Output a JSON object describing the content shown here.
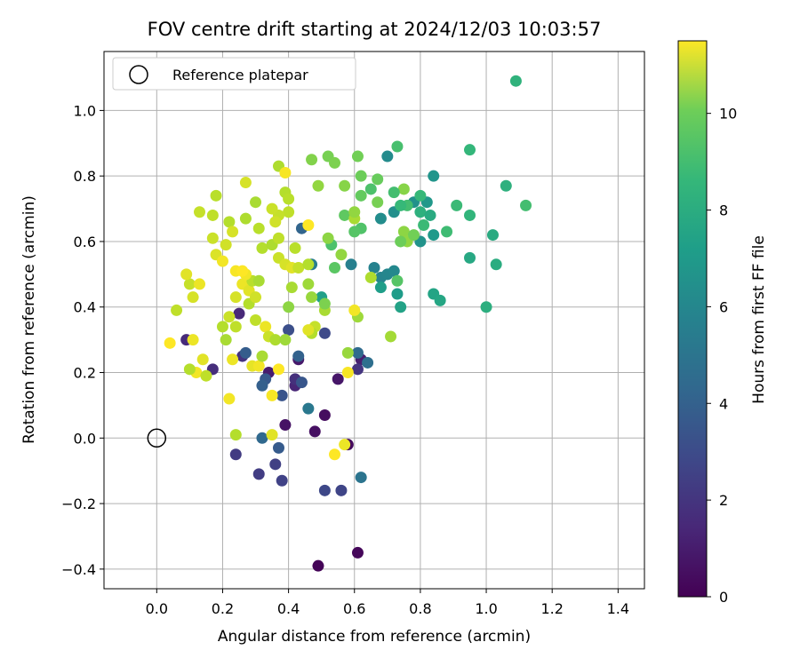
{
  "chart_data": {
    "type": "scatter",
    "title": "FOV centre drift starting at 2024/12/03 10:03:57",
    "xlabel": "Angular distance from reference (arcmin)",
    "ylabel": "Rotation from reference (arcmin)",
    "xlim": [
      -0.16,
      1.48
    ],
    "ylim": [
      -0.46,
      1.18
    ],
    "xticks": [
      "0.0",
      "0.2",
      "0.4",
      "0.6",
      "0.8",
      "1.0",
      "1.2",
      "1.4"
    ],
    "yticks": [
      "−0.4",
      "−0.2",
      "0.0",
      "0.2",
      "0.4",
      "0.6",
      "0.8",
      "1.0"
    ],
    "grid": true,
    "legend": {
      "location": "top-left",
      "entries": [
        "Reference platepar"
      ]
    },
    "reference_point": {
      "x": 0.0,
      "y": 0.0
    },
    "colorbar": {
      "label": "Hours from first FF file",
      "colormap": "viridis",
      "range": [
        0,
        11.5
      ],
      "ticks": [
        "0",
        "2",
        "4",
        "6",
        "8",
        "10"
      ]
    },
    "points": [
      {
        "x": 0.49,
        "y": -0.39,
        "c": 0.1
      },
      {
        "x": 0.61,
        "y": -0.35,
        "c": 0.2
      },
      {
        "x": 0.58,
        "y": -0.02,
        "c": 0.3
      },
      {
        "x": 0.51,
        "y": 0.07,
        "c": 0.4
      },
      {
        "x": 0.48,
        "y": 0.02,
        "c": 0.5
      },
      {
        "x": 0.39,
        "y": 0.04,
        "c": 0.6
      },
      {
        "x": 0.55,
        "y": 0.18,
        "c": 0.7
      },
      {
        "x": 0.43,
        "y": 0.24,
        "c": 0.8
      },
      {
        "x": 0.34,
        "y": 0.2,
        "c": 0.9
      },
      {
        "x": 0.62,
        "y": 0.24,
        "c": 1.0
      },
      {
        "x": 0.42,
        "y": 0.16,
        "c": 1.2
      },
      {
        "x": 0.25,
        "y": 0.38,
        "c": 1.3
      },
      {
        "x": 0.09,
        "y": 0.3,
        "c": 1.4
      },
      {
        "x": 0.17,
        "y": 0.21,
        "c": 1.5
      },
      {
        "x": 0.42,
        "y": 0.18,
        "c": 1.6
      },
      {
        "x": 0.26,
        "y": 0.25,
        "c": 1.7
      },
      {
        "x": 0.61,
        "y": 0.21,
        "c": 1.8
      },
      {
        "x": 0.24,
        "y": -0.05,
        "c": 2.0
      },
      {
        "x": 0.31,
        "y": -0.11,
        "c": 2.1
      },
      {
        "x": 0.36,
        "y": -0.08,
        "c": 2.2
      },
      {
        "x": 0.38,
        "y": -0.13,
        "c": 2.3
      },
      {
        "x": 0.56,
        "y": -0.16,
        "c": 2.4
      },
      {
        "x": 0.51,
        "y": -0.16,
        "c": 2.5
      },
      {
        "x": 0.51,
        "y": 0.32,
        "c": 2.6
      },
      {
        "x": 0.4,
        "y": 0.33,
        "c": 2.8
      },
      {
        "x": 0.38,
        "y": 0.13,
        "c": 3.0
      },
      {
        "x": 0.44,
        "y": 0.17,
        "c": 3.1
      },
      {
        "x": 0.33,
        "y": 0.18,
        "c": 3.2
      },
      {
        "x": 0.37,
        "y": -0.03,
        "c": 3.3
      },
      {
        "x": 0.27,
        "y": 0.26,
        "c": 3.4
      },
      {
        "x": 0.32,
        "y": 0.16,
        "c": 3.5
      },
      {
        "x": 0.43,
        "y": 0.25,
        "c": 3.6
      },
      {
        "x": 0.44,
        "y": 0.64,
        "c": 3.7
      },
      {
        "x": 0.32,
        "y": 0.0,
        "c": 3.9
      },
      {
        "x": 0.61,
        "y": 0.26,
        "c": 4.0
      },
      {
        "x": 0.64,
        "y": 0.23,
        "c": 4.2
      },
      {
        "x": 0.62,
        "y": -0.12,
        "c": 4.4
      },
      {
        "x": 0.46,
        "y": 0.09,
        "c": 4.6
      },
      {
        "x": 0.47,
        "y": 0.53,
        "c": 4.8
      },
      {
        "x": 0.59,
        "y": 0.53,
        "c": 5.0
      },
      {
        "x": 0.66,
        "y": 0.52,
        "c": 5.1
      },
      {
        "x": 0.68,
        "y": 0.49,
        "c": 5.2
      },
      {
        "x": 0.7,
        "y": 0.5,
        "c": 5.3
      },
      {
        "x": 0.72,
        "y": 0.51,
        "c": 5.4
      },
      {
        "x": 0.7,
        "y": 0.86,
        "c": 5.5
      },
      {
        "x": 0.68,
        "y": 0.67,
        "c": 5.6
      },
      {
        "x": 0.72,
        "y": 0.69,
        "c": 5.7
      },
      {
        "x": 0.78,
        "y": 0.72,
        "c": 5.8
      },
      {
        "x": 0.8,
        "y": 0.6,
        "c": 5.9
      },
      {
        "x": 0.84,
        "y": 0.8,
        "c": 6.0
      },
      {
        "x": 0.82,
        "y": 0.72,
        "c": 6.1
      },
      {
        "x": 0.84,
        "y": 0.62,
        "c": 6.2
      },
      {
        "x": 0.73,
        "y": 0.44,
        "c": 6.3
      },
      {
        "x": 0.68,
        "y": 0.46,
        "c": 6.4
      },
      {
        "x": 0.5,
        "y": 0.43,
        "c": 6.5
      },
      {
        "x": 0.74,
        "y": 0.4,
        "c": 6.6
      },
      {
        "x": 0.84,
        "y": 0.44,
        "c": 6.7
      },
      {
        "x": 0.86,
        "y": 0.42,
        "c": 6.8
      },
      {
        "x": 0.95,
        "y": 0.55,
        "c": 6.9
      },
      {
        "x": 1.02,
        "y": 0.62,
        "c": 7.0
      },
      {
        "x": 1.03,
        "y": 0.53,
        "c": 7.1
      },
      {
        "x": 1.0,
        "y": 0.4,
        "c": 7.2
      },
      {
        "x": 1.06,
        "y": 0.77,
        "c": 7.3
      },
      {
        "x": 1.09,
        "y": 1.09,
        "c": 7.4
      },
      {
        "x": 0.95,
        "y": 0.68,
        "c": 7.5
      },
      {
        "x": 0.95,
        "y": 0.88,
        "c": 7.6
      },
      {
        "x": 0.8,
        "y": 0.74,
        "c": 7.7
      },
      {
        "x": 0.81,
        "y": 0.65,
        "c": 7.8
      },
      {
        "x": 0.88,
        "y": 0.63,
        "c": 7.9
      },
      {
        "x": 1.12,
        "y": 0.71,
        "c": 8.0
      },
      {
        "x": 0.91,
        "y": 0.71,
        "c": 7.8
      },
      {
        "x": 0.76,
        "y": 0.71,
        "c": 8.0
      },
      {
        "x": 0.73,
        "y": 0.89,
        "c": 8.1
      },
      {
        "x": 0.53,
        "y": 0.59,
        "c": 8.2
      },
      {
        "x": 0.62,
        "y": 0.64,
        "c": 8.3
      },
      {
        "x": 0.6,
        "y": 0.63,
        "c": 8.4
      },
      {
        "x": 0.54,
        "y": 0.52,
        "c": 8.5
      },
      {
        "x": 0.57,
        "y": 0.68,
        "c": 8.6
      },
      {
        "x": 0.62,
        "y": 0.74,
        "c": 8.7
      },
      {
        "x": 0.67,
        "y": 0.79,
        "c": 8.8
      },
      {
        "x": 0.62,
        "y": 0.8,
        "c": 8.9
      },
      {
        "x": 0.61,
        "y": 0.86,
        "c": 9.0
      },
      {
        "x": 0.52,
        "y": 0.86,
        "c": 9.1
      },
      {
        "x": 0.54,
        "y": 0.84,
        "c": 9.2
      },
      {
        "x": 0.47,
        "y": 0.85,
        "c": 9.3
      },
      {
        "x": 0.57,
        "y": 0.77,
        "c": 9.4
      },
      {
        "x": 0.52,
        "y": 0.61,
        "c": 9.5
      },
      {
        "x": 0.56,
        "y": 0.56,
        "c": 9.6
      },
      {
        "x": 0.58,
        "y": 0.26,
        "c": 9.7
      },
      {
        "x": 0.61,
        "y": 0.37,
        "c": 9.8
      },
      {
        "x": 0.71,
        "y": 0.31,
        "c": 9.9
      },
      {
        "x": 0.6,
        "y": 0.67,
        "c": 10.0
      },
      {
        "x": 0.65,
        "y": 0.49,
        "c": 10.1
      },
      {
        "x": 0.67,
        "y": 0.72,
        "c": 9.1
      },
      {
        "x": 0.75,
        "y": 0.76,
        "c": 9.4
      },
      {
        "x": 0.6,
        "y": 0.69,
        "c": 9.6
      },
      {
        "x": 0.37,
        "y": 0.83,
        "c": 10.1
      },
      {
        "x": 0.39,
        "y": 0.81,
        "c": 11.4
      },
      {
        "x": 0.39,
        "y": 0.75,
        "c": 10.2
      },
      {
        "x": 0.4,
        "y": 0.73,
        "c": 10.3
      },
      {
        "x": 0.4,
        "y": 0.69,
        "c": 10.4
      },
      {
        "x": 0.37,
        "y": 0.68,
        "c": 10.5
      },
      {
        "x": 0.35,
        "y": 0.7,
        "c": 10.6
      },
      {
        "x": 0.36,
        "y": 0.66,
        "c": 10.7
      },
      {
        "x": 0.27,
        "y": 0.78,
        "c": 10.8
      },
      {
        "x": 0.3,
        "y": 0.72,
        "c": 10.0
      },
      {
        "x": 0.27,
        "y": 0.67,
        "c": 10.1
      },
      {
        "x": 0.22,
        "y": 0.66,
        "c": 10.2
      },
      {
        "x": 0.18,
        "y": 0.74,
        "c": 10.3
      },
      {
        "x": 0.17,
        "y": 0.68,
        "c": 10.4
      },
      {
        "x": 0.13,
        "y": 0.69,
        "c": 10.5
      },
      {
        "x": 0.17,
        "y": 0.61,
        "c": 10.6
      },
      {
        "x": 0.21,
        "y": 0.59,
        "c": 10.7
      },
      {
        "x": 0.23,
        "y": 0.63,
        "c": 10.8
      },
      {
        "x": 0.18,
        "y": 0.56,
        "c": 10.9
      },
      {
        "x": 0.2,
        "y": 0.54,
        "c": 11.3
      },
      {
        "x": 0.24,
        "y": 0.51,
        "c": 11.4
      },
      {
        "x": 0.26,
        "y": 0.47,
        "c": 11.2
      },
      {
        "x": 0.28,
        "y": 0.45,
        "c": 11.0
      },
      {
        "x": 0.24,
        "y": 0.43,
        "c": 10.8
      },
      {
        "x": 0.22,
        "y": 0.37,
        "c": 10.6
      },
      {
        "x": 0.24,
        "y": 0.34,
        "c": 10.4
      },
      {
        "x": 0.2,
        "y": 0.34,
        "c": 10.2
      },
      {
        "x": 0.21,
        "y": 0.3,
        "c": 10.0
      },
      {
        "x": 0.23,
        "y": 0.24,
        "c": 11.2
      },
      {
        "x": 0.14,
        "y": 0.24,
        "c": 11.0
      },
      {
        "x": 0.12,
        "y": 0.2,
        "c": 11.3
      },
      {
        "x": 0.15,
        "y": 0.19,
        "c": 10.4
      },
      {
        "x": 0.1,
        "y": 0.21,
        "c": 10.2
      },
      {
        "x": 0.04,
        "y": 0.29,
        "c": 11.5
      },
      {
        "x": 0.11,
        "y": 0.3,
        "c": 11.2
      },
      {
        "x": 0.06,
        "y": 0.39,
        "c": 10.4
      },
      {
        "x": 0.1,
        "y": 0.47,
        "c": 10.5
      },
      {
        "x": 0.09,
        "y": 0.5,
        "c": 11.0
      },
      {
        "x": 0.11,
        "y": 0.43,
        "c": 10.8
      },
      {
        "x": 0.13,
        "y": 0.47,
        "c": 11.2
      },
      {
        "x": 0.22,
        "y": 0.12,
        "c": 11.3
      },
      {
        "x": 0.24,
        "y": 0.01,
        "c": 10.2
      },
      {
        "x": 0.35,
        "y": 0.01,
        "c": 11.0
      },
      {
        "x": 0.29,
        "y": 0.22,
        "c": 11.1
      },
      {
        "x": 0.31,
        "y": 0.22,
        "c": 11.3
      },
      {
        "x": 0.32,
        "y": 0.25,
        "c": 10.0
      },
      {
        "x": 0.35,
        "y": 0.13,
        "c": 11.4
      },
      {
        "x": 0.37,
        "y": 0.21,
        "c": 11.5
      },
      {
        "x": 0.33,
        "y": 0.34,
        "c": 11.2
      },
      {
        "x": 0.34,
        "y": 0.31,
        "c": 10.6
      },
      {
        "x": 0.36,
        "y": 0.3,
        "c": 10.1
      },
      {
        "x": 0.39,
        "y": 0.3,
        "c": 9.8
      },
      {
        "x": 0.4,
        "y": 0.4,
        "c": 9.5
      },
      {
        "x": 0.3,
        "y": 0.36,
        "c": 10.4
      },
      {
        "x": 0.28,
        "y": 0.41,
        "c": 10.2
      },
      {
        "x": 0.3,
        "y": 0.43,
        "c": 10.7
      },
      {
        "x": 0.29,
        "y": 0.48,
        "c": 10.3
      },
      {
        "x": 0.31,
        "y": 0.48,
        "c": 10.0
      },
      {
        "x": 0.27,
        "y": 0.5,
        "c": 11.3
      },
      {
        "x": 0.26,
        "y": 0.51,
        "c": 11.5
      },
      {
        "x": 0.32,
        "y": 0.58,
        "c": 10.2
      },
      {
        "x": 0.35,
        "y": 0.59,
        "c": 10.1
      },
      {
        "x": 0.37,
        "y": 0.61,
        "c": 10.4
      },
      {
        "x": 0.31,
        "y": 0.64,
        "c": 10.3
      },
      {
        "x": 0.37,
        "y": 0.55,
        "c": 10.6
      },
      {
        "x": 0.39,
        "y": 0.53,
        "c": 10.8
      },
      {
        "x": 0.41,
        "y": 0.52,
        "c": 11.0
      },
      {
        "x": 0.43,
        "y": 0.52,
        "c": 10.5
      },
      {
        "x": 0.46,
        "y": 0.53,
        "c": 10.2
      },
      {
        "x": 0.41,
        "y": 0.46,
        "c": 10.0
      },
      {
        "x": 0.46,
        "y": 0.47,
        "c": 9.8
      },
      {
        "x": 0.47,
        "y": 0.43,
        "c": 9.7
      },
      {
        "x": 0.42,
        "y": 0.58,
        "c": 10.3
      },
      {
        "x": 0.48,
        "y": 0.34,
        "c": 10.5
      },
      {
        "x": 0.47,
        "y": 0.32,
        "c": 10.2
      },
      {
        "x": 0.46,
        "y": 0.33,
        "c": 11.0
      },
      {
        "x": 0.51,
        "y": 0.39,
        "c": 10.0
      },
      {
        "x": 0.51,
        "y": 0.41,
        "c": 9.2
      },
      {
        "x": 0.49,
        "y": 0.77,
        "c": 9.6
      },
      {
        "x": 0.46,
        "y": 0.65,
        "c": 11.5
      },
      {
        "x": 0.54,
        "y": -0.05,
        "c": 11.5
      },
      {
        "x": 0.57,
        "y": -0.02,
        "c": 11.2
      },
      {
        "x": 0.58,
        "y": 0.2,
        "c": 11.4
      },
      {
        "x": 0.6,
        "y": 0.39,
        "c": 11.3
      },
      {
        "x": 0.75,
        "y": 0.63,
        "c": 9.5
      },
      {
        "x": 0.76,
        "y": 0.6,
        "c": 9.6
      },
      {
        "x": 0.74,
        "y": 0.6,
        "c": 8.9
      },
      {
        "x": 0.78,
        "y": 0.62,
        "c": 9.0
      },
      {
        "x": 0.73,
        "y": 0.48,
        "c": 8.4
      },
      {
        "x": 0.65,
        "y": 0.76,
        "c": 8.2
      },
      {
        "x": 0.72,
        "y": 0.75,
        "c": 8.0
      },
      {
        "x": 0.74,
        "y": 0.71,
        "c": 7.7
      },
      {
        "x": 0.8,
        "y": 0.69,
        "c": 7.3
      },
      {
        "x": 0.83,
        "y": 0.68,
        "c": 7.0
      }
    ]
  }
}
